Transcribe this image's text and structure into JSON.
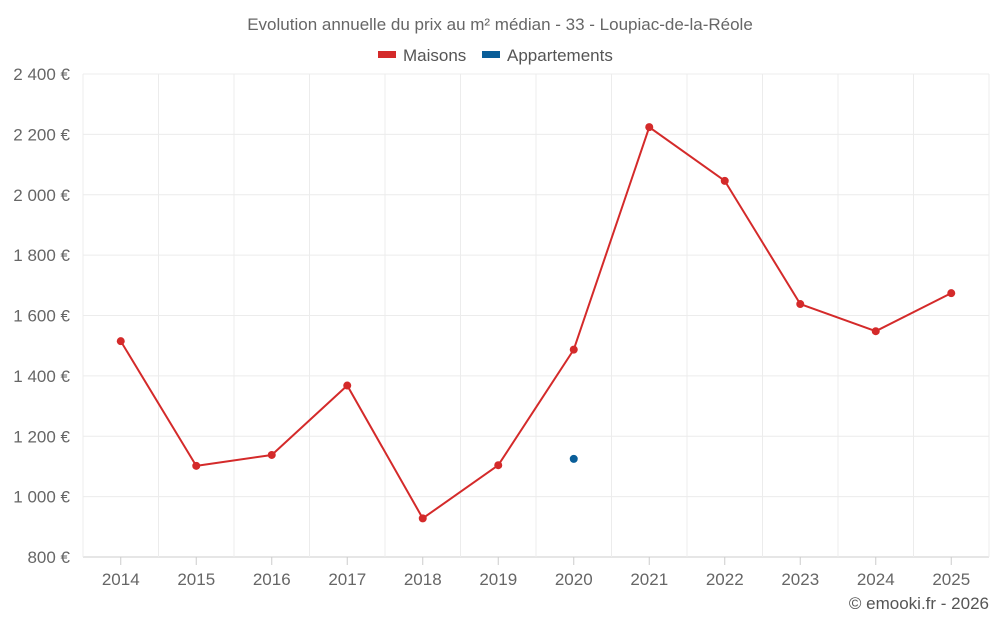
{
  "chart_data": {
    "type": "line",
    "title": "Evolution annuelle du prix au m² médian - 33 - Loupiac-de-la-Réole",
    "categories": [
      "2014",
      "2015",
      "2016",
      "2017",
      "2018",
      "2019",
      "2020",
      "2021",
      "2022",
      "2023",
      "2024",
      "2025"
    ],
    "series": [
      {
        "name": "Maisons",
        "color": "#d42a2a",
        "values": [
          1515,
          1102,
          1138,
          1368,
          928,
          1104,
          1487,
          2224,
          2046,
          1638,
          1548,
          1674
        ]
      },
      {
        "name": "Appartements",
        "color": "#0a5e99",
        "values": [
          null,
          null,
          null,
          null,
          null,
          null,
          1125,
          null,
          null,
          null,
          null,
          null
        ]
      }
    ],
    "ylim": [
      800,
      2400
    ],
    "yticks": [
      800,
      1000,
      1200,
      1400,
      1600,
      1800,
      2000,
      2200,
      2400
    ],
    "ytick_labels": [
      "800 €",
      "1 000 €",
      "1 200 €",
      "1 400 €",
      "1 600 €",
      "1 800 €",
      "2 000 €",
      "2 200 €",
      "2 400 €"
    ],
    "xlabel": "",
    "ylabel": "",
    "grid": true,
    "legend_position": "top-center"
  },
  "credit": "© emooki.fr - 2026"
}
